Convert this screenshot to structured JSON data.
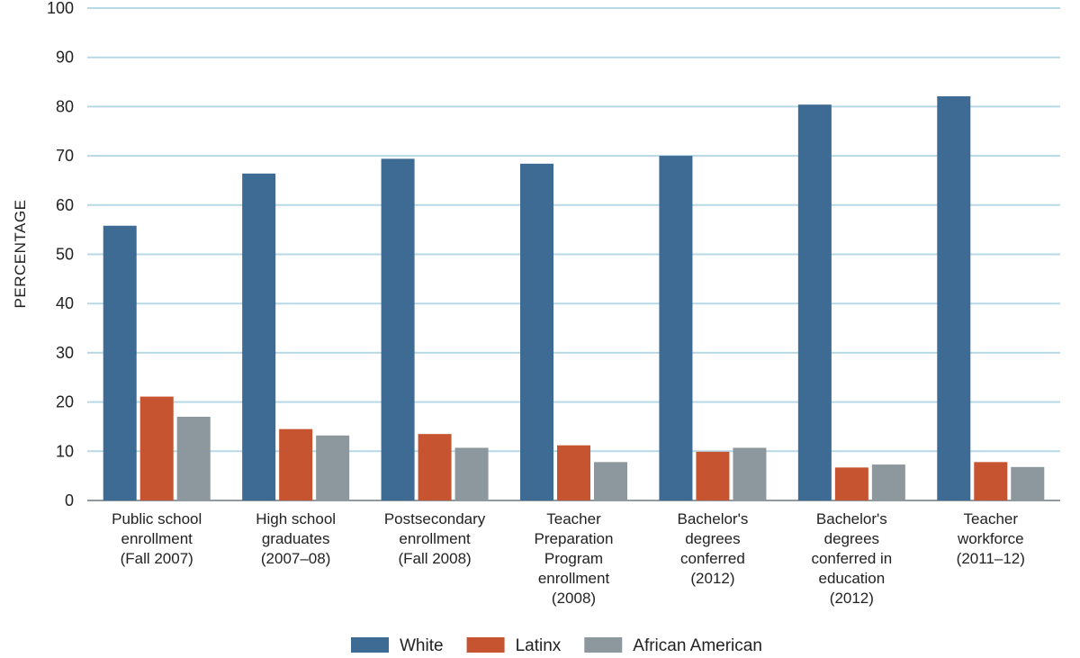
{
  "chart_data": {
    "type": "bar",
    "ylabel": "PERCENTAGE",
    "ylim": [
      0,
      100
    ],
    "yticks": [
      0,
      10,
      20,
      30,
      40,
      50,
      60,
      70,
      80,
      90,
      100
    ],
    "grid": true,
    "legend_position": "bottom",
    "categories": [
      [
        "Public school",
        "enrollment",
        "(Fall 2007)"
      ],
      [
        "High school",
        "graduates",
        "(2007–08)"
      ],
      [
        "Postsecondary",
        "enrollment",
        "(Fall 2008)"
      ],
      [
        "Teacher",
        "Preparation",
        "Program",
        "enrollment",
        "(2008)"
      ],
      [
        "Bachelor's",
        "degrees",
        "conferred",
        "(2012)"
      ],
      [
        "Bachelor's",
        "degrees",
        "conferred in",
        "education",
        "(2012)"
      ],
      [
        "Teacher",
        "workforce",
        "(2011–12)"
      ]
    ],
    "series": [
      {
        "name": "White",
        "color": "#3d6b93",
        "values": [
          55.8,
          66.4,
          69.4,
          68.4,
          70.0,
          80.4,
          82.1
        ]
      },
      {
        "name": "Latinx",
        "color": "#c75431",
        "values": [
          21.1,
          14.5,
          13.5,
          11.2,
          9.9,
          6.7,
          7.8
        ]
      },
      {
        "name": "African American",
        "color": "#8d979e",
        "values": [
          17.0,
          13.2,
          10.7,
          7.8,
          10.7,
          7.3,
          6.8
        ]
      }
    ]
  }
}
